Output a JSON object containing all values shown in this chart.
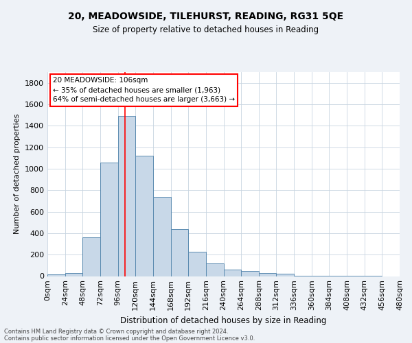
{
  "title1": "20, MEADOWSIDE, TILEHURST, READING, RG31 5QE",
  "title2": "Size of property relative to detached houses in Reading",
  "xlabel": "Distribution of detached houses by size in Reading",
  "ylabel": "Number of detached properties",
  "footer1": "Contains HM Land Registry data © Crown copyright and database right 2024.",
  "footer2": "Contains public sector information licensed under the Open Government Licence v3.0.",
  "bin_labels": [
    "0sqm",
    "24sqm",
    "48sqm",
    "72sqm",
    "96sqm",
    "120sqm",
    "144sqm",
    "168sqm",
    "192sqm",
    "216sqm",
    "240sqm",
    "264sqm",
    "288sqm",
    "312sqm",
    "336sqm",
    "360sqm",
    "384sqm",
    "408sqm",
    "432sqm",
    "456sqm",
    "480sqm"
  ],
  "bar_values": [
    15,
    30,
    360,
    1060,
    1490,
    1120,
    740,
    440,
    225,
    115,
    60,
    50,
    28,
    22,
    5,
    3,
    3,
    3,
    3,
    0,
    15
  ],
  "bar_color": "#c8d8e8",
  "bar_edge_color": "#5a8ab0",
  "bar_width": 1.0,
  "vline_x": 106,
  "vline_color": "red",
  "annotation_line1": "20 MEADOWSIDE: 106sqm",
  "annotation_line2": "← 35% of detached houses are smaller (1,963)",
  "annotation_line3": "64% of semi-detached houses are larger (3,663) →",
  "ylim": [
    0,
    1900
  ],
  "xlim": [
    0,
    480
  ],
  "bin_size": 24,
  "background_color": "#eef2f7",
  "plot_bg_color": "#ffffff"
}
